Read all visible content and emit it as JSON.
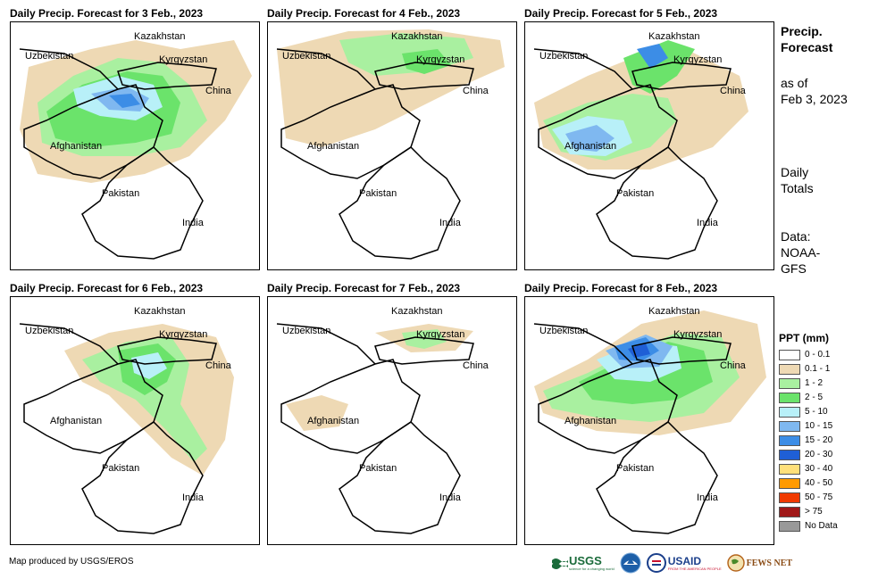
{
  "panels": [
    {
      "title": "Daily Precip. Forecast for 3 Feb., 2023"
    },
    {
      "title": "Daily Precip. Forecast for 4 Feb., 2023"
    },
    {
      "title": "Daily Precip. Forecast for 5 Feb., 2023"
    },
    {
      "title": "Daily Precip. Forecast for 6 Feb., 2023"
    },
    {
      "title": "Daily Precip. Forecast for 7 Feb., 2023"
    },
    {
      "title": "Daily Precip. Forecast for 8 Feb., 2023"
    }
  ],
  "map_labels": {
    "kazakhstan": "Kazakhstan",
    "uzbekistan": "Uzbekistan",
    "kyrgyzstan": "Kyrgyzstan",
    "china": "China",
    "afghanistan": "Afghanistan",
    "pakistan": "Pakistan",
    "india": "India"
  },
  "side": {
    "title_line1": "Precip.",
    "title_line2": "Forecast",
    "asof_line1": "as of",
    "asof_line2": "Feb 3, 2023",
    "daily_line1": "Daily",
    "daily_line2": "Totals",
    "data_line1": "Data:",
    "data_line2": "NOAA-",
    "data_line3": "GFS"
  },
  "legend": {
    "title": "PPT (mm)",
    "items": [
      {
        "label": "0 - 0.1",
        "color": "#ffffff"
      },
      {
        "label": "0.1 - 1",
        "color": "#eed9b4"
      },
      {
        "label": "1 - 2",
        "color": "#a9f0a0"
      },
      {
        "label": "2 - 5",
        "color": "#6be36b"
      },
      {
        "label": "5 - 10",
        "color": "#b8f0f8"
      },
      {
        "label": "10 - 15",
        "color": "#7fb8f0"
      },
      {
        "label": "15 - 20",
        "color": "#3c8de6"
      },
      {
        "label": "20 - 30",
        "color": "#1f5fd6"
      },
      {
        "label": "30 - 40",
        "color": "#ffe07a"
      },
      {
        "label": "40 - 50",
        "color": "#ff9a00"
      },
      {
        "label": "50 - 75",
        "color": "#f03a00"
      },
      {
        "label": "> 75",
        "color": "#a01818"
      },
      {
        "label": "No Data",
        "color": "#999999"
      }
    ]
  },
  "credit": "Map produced by USGS/EROS",
  "logos": {
    "usgs": "USGS",
    "usgs_tagline": "science for a changing world",
    "usaid": "USAID",
    "usaid_tagline": "FROM THE AMERICAN PEOPLE",
    "fewsnet": "FEWS NET"
  }
}
